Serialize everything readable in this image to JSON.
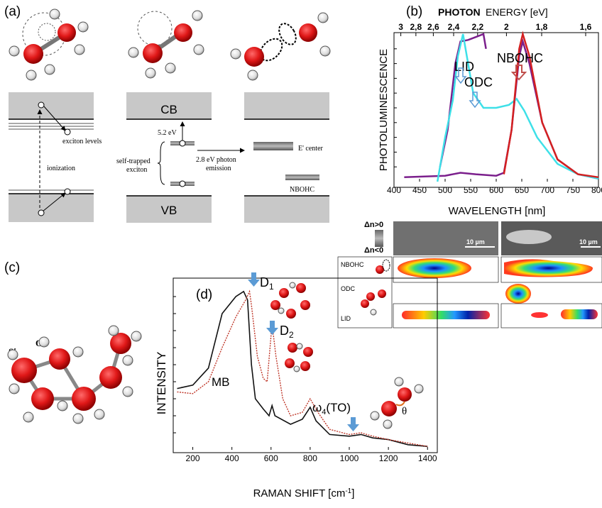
{
  "panel_a": {
    "label": "(a)",
    "col1": {
      "exciton_levels": "exciton levels",
      "ionization": "ionization",
      "e": "e",
      "h": "h"
    },
    "col2": {
      "cb": "CB",
      "vb": "VB",
      "energy": "5.2 eV",
      "self_trapped_1": "self-trapped",
      "self_trapped_2": "exciton",
      "emission_1": "2.8 eV photon",
      "emission_2": "emission",
      "e": "e",
      "h": "h"
    },
    "col3": {
      "e_center": "E' center",
      "nbohc": "NBOHC"
    }
  },
  "panel_b": {
    "label": "(b)",
    "top_axis_title_bold": "PHOTON",
    "top_axis_title_rest": " ENERGY [eV]",
    "top_ticks": [
      "3",
      "2,8",
      "2,6",
      "2,4",
      "2,2",
      "2",
      "1,8",
      "1,6"
    ],
    "annotations": {
      "lid": "LID",
      "odc": "ODC",
      "nbohc": "NBOHC"
    },
    "colors": {
      "purple": "#7b1f8c",
      "cyan": "#3ee0e8",
      "red": "#d42020",
      "arrow_blue": "#5b9bd5",
      "arrow_red": "#c0504d"
    }
  },
  "panel_imaging": {
    "scale_left": "10 µm",
    "scale_right": "10 µm",
    "dn_pos": "Δn>0",
    "dn_neg": "Δn<0",
    "labels": [
      "NBOHC",
      "ODC",
      "LID"
    ]
  },
  "panel_c": {
    "label": "(c)",
    "si": "Si",
    "o": "O"
  },
  "panel_d": {
    "label": "(d)",
    "peaks": {
      "d1": "D",
      "d1_sub": "1",
      "d2": "D",
      "d2_sub": "2",
      "mb": "MB",
      "w4_pre": "ω",
      "w4_sub": "4",
      "w4_post": "(TO)",
      "theta": "θ"
    }
  },
  "chart_data": [
    {
      "type": "line",
      "xlabel": "WAVELENGTH [nm]",
      "ylabel": "PHOTOLUMINESCENCE",
      "x_ticks": [
        400,
        450,
        500,
        550,
        600,
        650,
        700,
        750,
        800
      ],
      "xlim": [
        400,
        800
      ],
      "series": [
        {
          "color": "#7b1f8c",
          "points": [
            [
              420,
              0.03
            ],
            [
              500,
              0.04
            ],
            [
              530,
              0.06
            ],
            [
              560,
              0.05
            ],
            [
              600,
              0.04
            ],
            [
              615,
              0.06
            ],
            [
              630,
              0.35
            ],
            [
              645,
              0.85
            ],
            [
              652,
              0.95
            ],
            [
              665,
              0.8
            ],
            [
              690,
              0.4
            ],
            [
              720,
              0.15
            ],
            [
              760,
              0.05
            ],
            [
              800,
              0.02
            ]
          ]
        },
        {
          "color": "#7b1f8c",
          "points": [
            [
              490,
              0.1
            ],
            [
              505,
              0.35
            ],
            [
              520,
              0.8
            ],
            [
              530,
              0.95
            ],
            [
              545,
              0.96
            ],
            [
              560,
              0.98
            ],
            [
              575,
              1.0
            ],
            [
              580,
              0.9
            ]
          ]
        },
        {
          "color": "#3ee0e8",
          "points": [
            [
              485,
              0.0
            ],
            [
              500,
              0.3
            ],
            [
              515,
              0.55
            ],
            [
              525,
              0.85
            ],
            [
              535,
              1.0
            ],
            [
              545,
              0.8
            ],
            [
              555,
              0.6
            ],
            [
              575,
              0.5
            ],
            [
              600,
              0.5
            ],
            [
              625,
              0.52
            ],
            [
              640,
              0.56
            ],
            [
              655,
              0.48
            ],
            [
              680,
              0.3
            ],
            [
              720,
              0.12
            ],
            [
              760,
              0.05
            ],
            [
              800,
              0.02
            ]
          ]
        },
        {
          "color": "#d42020",
          "points": [
            [
              615,
              0.05
            ],
            [
              630,
              0.35
            ],
            [
              645,
              0.9
            ],
            [
              652,
              1.0
            ],
            [
              665,
              0.85
            ],
            [
              690,
              0.4
            ],
            [
              720,
              0.15
            ],
            [
              760,
              0.05
            ],
            [
              800,
              0.03
            ]
          ]
        }
      ]
    },
    {
      "type": "line",
      "xlabel": "RAMAN SHIFT [cm-1]",
      "ylabel": "INTENSITY",
      "x_ticks": [
        200,
        400,
        600,
        800,
        1000,
        1200,
        1400
      ],
      "xlim": [
        100,
        1450
      ],
      "series": [
        {
          "color": "#111111",
          "points": [
            [
              120,
              0.36
            ],
            [
              200,
              0.38
            ],
            [
              280,
              0.48
            ],
            [
              350,
              0.8
            ],
            [
              420,
              0.9
            ],
            [
              460,
              0.93
            ],
            [
              480,
              0.88
            ],
            [
              500,
              0.5
            ],
            [
              520,
              0.3
            ],
            [
              560,
              0.24
            ],
            [
              590,
              0.2
            ],
            [
              605,
              0.26
            ],
            [
              620,
              0.2
            ],
            [
              700,
              0.15
            ],
            [
              760,
              0.18
            ],
            [
              800,
              0.25
            ],
            [
              830,
              0.17
            ],
            [
              900,
              0.09
            ],
            [
              1000,
              0.08
            ],
            [
              1060,
              0.09
            ],
            [
              1120,
              0.07
            ],
            [
              1200,
              0.06
            ],
            [
              1300,
              0.03
            ],
            [
              1400,
              0.02
            ]
          ]
        },
        {
          "color": "#c0392b",
          "points": [
            [
              120,
              0.34
            ],
            [
              200,
              0.33
            ],
            [
              280,
              0.4
            ],
            [
              350,
              0.6
            ],
            [
              420,
              0.78
            ],
            [
              470,
              0.88
            ],
            [
              490,
              0.93
            ],
            [
              500,
              0.85
            ],
            [
              530,
              0.55
            ],
            [
              560,
              0.42
            ],
            [
              580,
              0.4
            ],
            [
              605,
              0.74
            ],
            [
              625,
              0.55
            ],
            [
              660,
              0.3
            ],
            [
              700,
              0.2
            ],
            [
              760,
              0.22
            ],
            [
              800,
              0.3
            ],
            [
              840,
              0.22
            ],
            [
              900,
              0.12
            ],
            [
              1000,
              0.09
            ],
            [
              1060,
              0.1
            ],
            [
              1120,
              0.08
            ],
            [
              1200,
              0.06
            ],
            [
              1300,
              0.04
            ],
            [
              1400,
              0.02
            ]
          ]
        }
      ]
    }
  ]
}
